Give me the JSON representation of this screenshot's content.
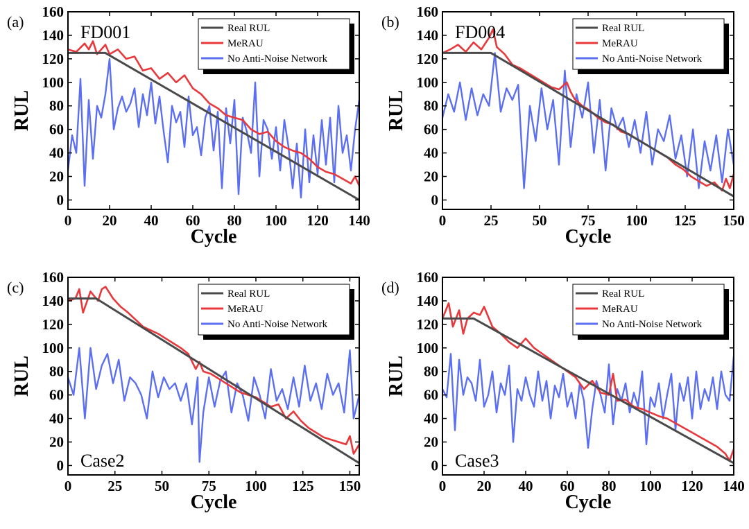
{
  "colors": {
    "real": "#4a4a4a",
    "merau": "#e8383b",
    "noise": "#5b6ff0"
  },
  "chart_data": [
    {
      "type": "line",
      "panel_label": "(a)",
      "case_label": "FD001",
      "xlabel": "Cycle",
      "ylabel": "RUL",
      "xlim": [
        0,
        140
      ],
      "ylim": [
        -8,
        160
      ],
      "xticks": [
        0,
        20,
        40,
        60,
        80,
        100,
        120,
        140
      ],
      "yticks": [
        0,
        20,
        40,
        60,
        80,
        100,
        120,
        140,
        160
      ],
      "legend_position": "top-right",
      "series": [
        {
          "name": "Real RUL",
          "x": [
            0,
            18,
            140
          ],
          "y": [
            125,
            125,
            0
          ]
        },
        {
          "name": "MeRAU",
          "x": [
            0,
            4,
            8,
            10,
            12,
            14,
            18,
            20,
            24,
            28,
            32,
            36,
            40,
            44,
            48,
            52,
            56,
            60,
            64,
            68,
            72,
            76,
            80,
            84,
            88,
            92,
            96,
            100,
            104,
            108,
            112,
            116,
            120,
            124,
            128,
            132,
            136,
            138,
            140
          ],
          "y": [
            128,
            126,
            133,
            128,
            135,
            124,
            132,
            124,
            128,
            120,
            122,
            110,
            112,
            103,
            108,
            100,
            106,
            95,
            90,
            82,
            78,
            72,
            70,
            68,
            60,
            56,
            58,
            50,
            45,
            42,
            40,
            35,
            28,
            24,
            22,
            18,
            14,
            20,
            12
          ]
        },
        {
          "name": "No Anti-Noise Network",
          "x": [
            0,
            2,
            4,
            6,
            8,
            10,
            12,
            14,
            16,
            18,
            20,
            22,
            24,
            26,
            28,
            30,
            32,
            34,
            36,
            38,
            40,
            42,
            44,
            46,
            48,
            50,
            52,
            54,
            56,
            58,
            60,
            62,
            64,
            66,
            68,
            70,
            72,
            74,
            76,
            78,
            80,
            82,
            84,
            86,
            88,
            90,
            92,
            94,
            96,
            98,
            100,
            102,
            104,
            106,
            108,
            110,
            112,
            114,
            116,
            118,
            120,
            122,
            124,
            126,
            128,
            130,
            132,
            134,
            136,
            138,
            140
          ],
          "y": [
            25,
            55,
            40,
            103,
            12,
            85,
            35,
            80,
            70,
            90,
            120,
            60,
            78,
            88,
            75,
            82,
            95,
            62,
            90,
            72,
            100,
            65,
            88,
            58,
            32,
            80,
            66,
            75,
            45,
            88,
            55,
            62,
            38,
            70,
            80,
            42,
            75,
            10,
            78,
            48,
            85,
            5,
            70,
            58,
            40,
            100,
            20,
            68,
            60,
            35,
            62,
            25,
            68,
            45,
            10,
            48,
            2,
            60,
            15,
            55,
            22,
            68,
            30,
            70,
            15,
            80,
            40,
            55,
            25,
            60,
            85
          ]
        }
      ]
    },
    {
      "type": "line",
      "panel_label": "(b)",
      "case_label": "FD004",
      "xlabel": "Cycle",
      "ylabel": "RUL",
      "xlim": [
        0,
        150
      ],
      "ylim": [
        -8,
        160
      ],
      "xticks": [
        0,
        25,
        50,
        75,
        100,
        125,
        150
      ],
      "yticks": [
        0,
        20,
        40,
        60,
        80,
        100,
        120,
        140,
        160
      ],
      "legend_position": "top-right",
      "series": [
        {
          "name": "Real RUL",
          "x": [
            0,
            25,
            150
          ],
          "y": [
            125,
            125,
            3
          ]
        },
        {
          "name": "MeRAU",
          "x": [
            0,
            4,
            8,
            12,
            16,
            20,
            24,
            26,
            28,
            32,
            36,
            40,
            44,
            48,
            52,
            56,
            60,
            64,
            66,
            68,
            72,
            76,
            80,
            84,
            88,
            92,
            96,
            100,
            104,
            108,
            112,
            116,
            120,
            124,
            128,
            132,
            136,
            140,
            144,
            146,
            148,
            150
          ],
          "y": [
            125,
            128,
            132,
            126,
            134,
            128,
            138,
            145,
            130,
            124,
            115,
            112,
            108,
            104,
            100,
            96,
            94,
            100,
            92,
            86,
            80,
            76,
            70,
            66,
            64,
            58,
            56,
            52,
            48,
            44,
            40,
            36,
            30,
            26,
            20,
            16,
            12,
            15,
            8,
            18,
            10,
            22
          ]
        },
        {
          "name": "No Anti-Noise Network",
          "x": [
            0,
            3,
            6,
            9,
            12,
            15,
            18,
            21,
            24,
            27,
            30,
            33,
            36,
            39,
            42,
            45,
            48,
            51,
            54,
            57,
            60,
            63,
            66,
            69,
            72,
            75,
            78,
            81,
            84,
            87,
            90,
            93,
            96,
            99,
            102,
            105,
            108,
            111,
            114,
            117,
            120,
            123,
            126,
            129,
            132,
            135,
            138,
            141,
            144,
            147,
            150
          ],
          "y": [
            70,
            90,
            75,
            100,
            68,
            95,
            72,
            90,
            80,
            125,
            75,
            95,
            85,
            98,
            10,
            80,
            50,
            95,
            60,
            85,
            30,
            110,
            45,
            90,
            70,
            100,
            40,
            85,
            25,
            78,
            60,
            70,
            45,
            68,
            40,
            75,
            30,
            60,
            50,
            72,
            35,
            55,
            20,
            60,
            10,
            50,
            25,
            55,
            15,
            60,
            30
          ]
        }
      ]
    },
    {
      "type": "line",
      "panel_label": "(c)",
      "case_label": "Case2",
      "xlabel": "Cycle",
      "ylabel": "RUL",
      "xlim": [
        0,
        155
      ],
      "ylim": [
        -8,
        160
      ],
      "xticks": [
        0,
        25,
        50,
        75,
        100,
        125,
        150
      ],
      "yticks": [
        0,
        20,
        40,
        60,
        80,
        100,
        120,
        140,
        160
      ],
      "legend_position": "top-right",
      "series": [
        {
          "name": "Real RUL",
          "x": [
            0,
            15,
            155
          ],
          "y": [
            142,
            142,
            2
          ]
        },
        {
          "name": "MeRAU",
          "x": [
            0,
            4,
            6,
            8,
            12,
            16,
            18,
            20,
            24,
            28,
            32,
            36,
            40,
            44,
            48,
            52,
            56,
            60,
            64,
            68,
            70,
            72,
            76,
            80,
            84,
            88,
            92,
            96,
            100,
            104,
            108,
            112,
            116,
            120,
            124,
            128,
            132,
            136,
            140,
            144,
            148,
            150,
            152,
            155
          ],
          "y": [
            140,
            142,
            150,
            130,
            148,
            140,
            150,
            152,
            142,
            135,
            130,
            124,
            118,
            115,
            112,
            108,
            104,
            100,
            95,
            82,
            88,
            80,
            78,
            74,
            70,
            66,
            62,
            60,
            58,
            54,
            50,
            52,
            40,
            46,
            38,
            32,
            28,
            24,
            22,
            20,
            18,
            25,
            10,
            18
          ]
        },
        {
          "name": "No Anti-Noise Network",
          "x": [
            0,
            3,
            6,
            9,
            12,
            15,
            18,
            21,
            24,
            27,
            30,
            33,
            36,
            39,
            42,
            45,
            48,
            51,
            54,
            57,
            60,
            63,
            66,
            69,
            70,
            72,
            75,
            78,
            81,
            84,
            87,
            90,
            93,
            96,
            99,
            102,
            105,
            108,
            111,
            114,
            117,
            120,
            123,
            126,
            129,
            132,
            135,
            138,
            141,
            144,
            147,
            150,
            152,
            155
          ],
          "y": [
            75,
            60,
            100,
            40,
            100,
            65,
            85,
            95,
            70,
            90,
            55,
            75,
            70,
            60,
            40,
            80,
            58,
            75,
            65,
            70,
            55,
            70,
            35,
            75,
            3,
            45,
            75,
            50,
            72,
            80,
            45,
            70,
            60,
            38,
            75,
            60,
            40,
            82,
            55,
            65,
            48,
            75,
            50,
            85,
            55,
            70,
            48,
            78,
            60,
            70,
            45,
            98,
            40,
            60
          ]
        }
      ]
    },
    {
      "type": "line",
      "panel_label": "(d)",
      "case_label": "Case3",
      "xlabel": "Cycle",
      "ylabel": "RUL",
      "xlim": [
        0,
        140
      ],
      "ylim": [
        -8,
        160
      ],
      "xticks": [
        0,
        20,
        40,
        60,
        80,
        100,
        120,
        140
      ],
      "yticks": [
        0,
        20,
        40,
        60,
        80,
        100,
        120,
        140,
        160
      ],
      "legend_position": "top-right",
      "series": [
        {
          "name": "Real RUL",
          "x": [
            0,
            15,
            140
          ],
          "y": [
            125,
            125,
            2
          ]
        },
        {
          "name": "MeRAU",
          "x": [
            0,
            3,
            5,
            8,
            10,
            12,
            15,
            18,
            20,
            24,
            28,
            32,
            36,
            40,
            44,
            48,
            52,
            56,
            60,
            64,
            68,
            72,
            76,
            80,
            82,
            84,
            88,
            92,
            96,
            100,
            104,
            108,
            112,
            116,
            120,
            124,
            128,
            132,
            136,
            138,
            140
          ],
          "y": [
            125,
            138,
            118,
            132,
            112,
            125,
            130,
            128,
            135,
            118,
            112,
            105,
            100,
            108,
            100,
            95,
            90,
            85,
            80,
            75,
            65,
            72,
            62,
            60,
            78,
            55,
            56,
            50,
            48,
            45,
            42,
            40,
            36,
            32,
            28,
            24,
            20,
            16,
            10,
            4,
            14
          ]
        },
        {
          "name": "No Anti-Noise Network",
          "x": [
            0,
            2,
            4,
            6,
            8,
            10,
            12,
            14,
            16,
            18,
            20,
            22,
            24,
            26,
            28,
            30,
            32,
            34,
            36,
            38,
            40,
            42,
            44,
            46,
            48,
            50,
            52,
            54,
            56,
            58,
            60,
            62,
            64,
            66,
            68,
            70,
            72,
            74,
            76,
            78,
            80,
            82,
            84,
            86,
            88,
            90,
            92,
            94,
            96,
            98,
            100,
            102,
            104,
            106,
            108,
            110,
            112,
            114,
            116,
            118,
            120,
            122,
            124,
            126,
            128,
            130,
            132,
            134,
            136,
            138,
            140
          ],
          "y": [
            65,
            58,
            95,
            30,
            90,
            60,
            75,
            70,
            55,
            90,
            50,
            60,
            80,
            45,
            70,
            60,
            85,
            20,
            65,
            55,
            75,
            60,
            50,
            80,
            55,
            72,
            40,
            68,
            58,
            78,
            50,
            62,
            40,
            70,
            55,
            15,
            48,
            72,
            60,
            45,
            86,
            35,
            65,
            55,
            70,
            45,
            62,
            50,
            80,
            18,
            58,
            50,
            70,
            40,
            60,
            78,
            30,
            70,
            55,
            75,
            40,
            80,
            48,
            65,
            55,
            75,
            48,
            80,
            60,
            55,
            93
          ]
        }
      ]
    }
  ]
}
